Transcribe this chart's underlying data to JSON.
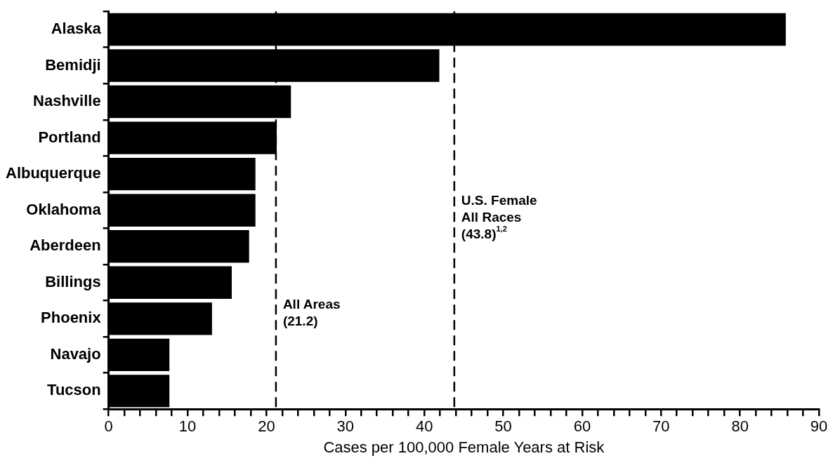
{
  "chart_data": {
    "type": "bar",
    "orientation": "horizontal",
    "xlabel": "Cases per 100,000 Female Years at Risk",
    "categories": [
      "Alaska",
      "Bemidji",
      "Nashville",
      "Portland",
      "Albuquerque",
      "Oklahoma",
      "Aberdeen",
      "Billings",
      "Phoenix",
      "Navajo",
      "Tucson"
    ],
    "values": [
      85.8,
      41.9,
      23.1,
      21.3,
      18.6,
      18.6,
      17.8,
      15.6,
      13.1,
      7.7,
      7.7
    ],
    "color": "#000000",
    "xlim": [
      0,
      90
    ],
    "xticks": [
      0,
      {
        "value": 2,
        "label": null
      },
      {
        "value": 4,
        "label": null
      },
      {
        "value": 6,
        "label": null
      },
      {
        "value": 8,
        "label": null
      },
      10,
      {
        "value": 12,
        "label": null
      },
      {
        "value": 14,
        "label": null
      },
      {
        "value": 16,
        "label": null
      },
      {
        "value": 18,
        "label": null
      },
      20,
      {
        "value": 22,
        "label": null
      },
      {
        "value": 24,
        "label": null
      },
      {
        "value": 26,
        "label": null
      },
      {
        "value": 28,
        "label": null
      },
      30,
      {
        "value": 32,
        "label": null
      },
      {
        "value": 34,
        "label": null
      },
      {
        "value": 36,
        "label": null
      },
      {
        "value": 38,
        "label": null
      },
      40,
      {
        "value": 42,
        "label": null
      },
      {
        "value": 44,
        "label": null
      },
      {
        "value": 46,
        "label": null
      },
      {
        "value": 48,
        "label": null
      },
      50,
      {
        "value": 52,
        "label": null
      },
      {
        "value": 54,
        "label": null
      },
      {
        "value": 56,
        "label": null
      },
      {
        "value": 58,
        "label": null
      },
      60,
      {
        "value": 62,
        "label": null
      },
      {
        "value": 64,
        "label": null
      },
      {
        "value": 66,
        "label": null
      },
      {
        "value": 68,
        "label": null
      },
      70,
      {
        "value": 72,
        "label": null
      },
      {
        "value": 74,
        "label": null
      },
      {
        "value": 76,
        "label": null
      },
      {
        "value": 78,
        "label": null
      },
      80,
      {
        "value": 82,
        "label": null
      },
      {
        "value": 84,
        "label": null
      },
      {
        "value": 86,
        "label": null
      },
      {
        "value": 88,
        "label": null
      },
      90
    ],
    "grid": false,
    "ref_lines": [
      {
        "axis": "x",
        "value": 21.2,
        "label": "All Areas\n(21.2)",
        "color": "#000000",
        "line_style": "dashed"
      },
      {
        "axis": "x",
        "value": 43.8,
        "label": "U.S. Female\nAll Races\n(43.8)$^{1,2}$",
        "color": "#000000",
        "line_style": "dashed"
      }
    ]
  }
}
